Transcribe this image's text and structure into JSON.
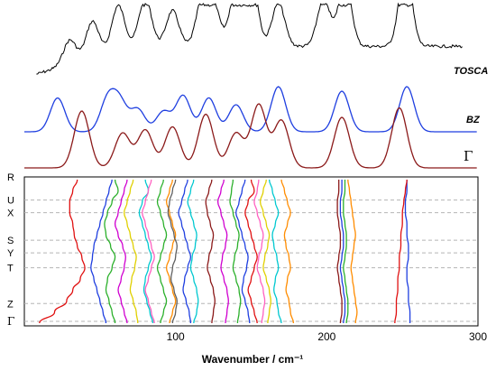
{
  "chart_data": [
    {
      "type": "line",
      "title": "",
      "series": [
        {
          "name": "TOSCA",
          "color": "#000000"
        },
        {
          "name": "BZ",
          "color": "#1f3fe0"
        },
        {
          "name": "Γ",
          "color": "#8b1a1a"
        }
      ],
      "peaks": {
        "TOSCA": [
          [
            18,
            0.0
          ],
          [
            30,
            0.3
          ],
          [
            45,
            0.45
          ],
          [
            62,
            0.55
          ],
          [
            80,
            0.6
          ],
          [
            98,
            0.45
          ],
          [
            118,
            0.6
          ],
          [
            125,
            0.5
          ],
          [
            140,
            0.72
          ],
          [
            150,
            0.9
          ],
          [
            168,
            0.55
          ],
          [
            198,
            0.6
          ],
          [
            212,
            0.85
          ],
          [
            252,
            1.0
          ]
        ],
        "BZ": [
          [
            22,
            0.75
          ],
          [
            55,
            0.7
          ],
          [
            63,
            0.65
          ],
          [
            75,
            0.5
          ],
          [
            92,
            0.45
          ],
          [
            105,
            0.8
          ],
          [
            122,
            0.75
          ],
          [
            140,
            0.6
          ],
          [
            168,
            1.0
          ],
          [
            210,
            0.9
          ],
          [
            253,
            1.0
          ]
        ],
        "Γ": [
          [
            38,
            0.9
          ],
          [
            65,
            0.55
          ],
          [
            80,
            0.6
          ],
          [
            98,
            0.65
          ],
          [
            120,
            0.85
          ],
          [
            140,
            0.55
          ],
          [
            155,
            1.0
          ],
          [
            170,
            0.75
          ],
          [
            210,
            0.8
          ],
          [
            248,
            0.95
          ]
        ]
      }
    },
    {
      "type": "line",
      "xlabel": "Wavenumber / cm⁻¹",
      "xlim": [
        0,
        300
      ],
      "xticks": [
        "100",
        "200",
        "300"
      ],
      "kpoints": [
        "R",
        "U",
        "X",
        "S",
        "Y",
        "T",
        "Z",
        "Γ"
      ],
      "kpoint_fractions": [
        0.0,
        0.155,
        0.24,
        0.425,
        0.51,
        0.61,
        0.85,
        0.97
      ],
      "bands": [
        {
          "color": "#e01010",
          "x": [
            35,
            32,
            30,
            30,
            32,
            33,
            35,
            38,
            40,
            37,
            32,
            28,
            20,
            10
          ]
        },
        {
          "color": "#1f3fe0",
          "x": [
            58,
            56,
            54,
            52,
            50,
            48,
            46,
            45,
            44,
            46,
            48,
            50,
            52,
            54
          ]
        },
        {
          "color": "#2bb02b",
          "x": [
            60,
            62,
            58,
            55,
            53,
            54,
            57,
            60,
            58,
            55,
            54,
            56,
            58,
            60
          ]
        },
        {
          "color": "#d000d0",
          "x": [
            68,
            66,
            64,
            62,
            60,
            62,
            65,
            67,
            66,
            64,
            62,
            64,
            66,
            68
          ]
        },
        {
          "color": "#e0d000",
          "x": [
            72,
            70,
            68,
            66,
            68,
            70,
            72,
            74,
            73,
            71,
            70,
            72,
            74,
            75
          ]
        },
        {
          "color": "#00c8d0",
          "x": [
            80,
            82,
            78,
            76,
            78,
            80,
            82,
            84,
            82,
            80,
            79,
            81,
            83,
            85
          ]
        },
        {
          "color": "#ff60c0",
          "x": [
            84,
            82,
            80,
            78,
            80,
            82,
            84,
            86,
            84,
            82,
            80,
            82,
            84,
            86
          ]
        },
        {
          "color": "#2bb02b",
          "x": [
            92,
            90,
            88,
            90,
            92,
            94,
            92,
            90,
            88,
            90,
            92,
            94,
            92,
            90
          ]
        },
        {
          "color": "#ff8c00",
          "x": [
            98,
            96,
            94,
            96,
            98,
            100,
            98,
            96,
            94,
            96,
            98,
            100,
            98,
            96
          ]
        },
        {
          "color": "#606060",
          "x": [
            100,
            98,
            96,
            95,
            97,
            99,
            101,
            100,
            98,
            97,
            99,
            101,
            100,
            98
          ]
        },
        {
          "color": "#1f3fe0",
          "x": [
            108,
            106,
            104,
            102,
            104,
            106,
            108,
            110,
            108,
            106,
            105,
            107,
            109,
            110
          ]
        },
        {
          "color": "#00c8d0",
          "x": [
            112,
            110,
            108,
            110,
            112,
            114,
            113,
            111,
            110,
            112,
            114,
            115,
            114,
            112
          ]
        },
        {
          "color": "#8b1a1a",
          "x": [
            124,
            122,
            120,
            121,
            123,
            125,
            124,
            122,
            121,
            123,
            125,
            126,
            125,
            124
          ]
        },
        {
          "color": "#d000d0",
          "x": [
            132,
            130,
            128,
            130,
            132,
            134,
            133,
            131,
            130,
            132,
            134,
            135,
            134,
            133
          ]
        },
        {
          "color": "#2bb02b",
          "x": [
            138,
            137,
            136,
            138,
            140,
            142,
            141,
            139,
            138,
            140,
            142,
            143,
            142,
            141
          ]
        },
        {
          "color": "#1f3fe0",
          "x": [
            146,
            144,
            142,
            140,
            142,
            144,
            146,
            148,
            147,
            145,
            144,
            146,
            148,
            149
          ]
        },
        {
          "color": "#e01010",
          "x": [
            150,
            152,
            148,
            146,
            148,
            150,
            152,
            154,
            152,
            150,
            148,
            150,
            152,
            154
          ]
        },
        {
          "color": "#ff60c0",
          "x": [
            155,
            154,
            152,
            154,
            156,
            158,
            157,
            155,
            154,
            156,
            158,
            159,
            158,
            157
          ]
        },
        {
          "color": "#e0d000",
          "x": [
            160,
            158,
            156,
            158,
            160,
            162,
            161,
            159,
            158,
            160,
            162,
            163,
            162,
            161
          ]
        },
        {
          "color": "#00c8d0",
          "x": [
            162,
            164,
            166,
            168,
            166,
            164,
            165,
            167,
            168,
            166,
            165,
            167,
            168,
            170
          ]
        },
        {
          "color": "#ff8c00",
          "x": [
            170,
            172,
            174,
            176,
            174,
            172,
            173,
            175,
            176,
            174,
            173,
            175,
            176,
            178
          ]
        },
        {
          "color": "#8b1a1a",
          "x": [
            208,
            208,
            207,
            207,
            208,
            209,
            209,
            208,
            207,
            208,
            209,
            210,
            210,
            209
          ]
        },
        {
          "color": "#1f3fe0",
          "x": [
            210,
            210,
            209,
            209,
            210,
            211,
            211,
            210,
            209,
            210,
            211,
            212,
            212,
            211
          ]
        },
        {
          "color": "#2bb02b",
          "x": [
            212,
            212,
            211,
            211,
            212,
            213,
            213,
            212,
            211,
            212,
            213,
            214,
            214,
            213
          ]
        },
        {
          "color": "#ff8c00",
          "x": [
            214,
            215,
            216,
            217,
            218,
            219,
            218,
            217,
            216,
            217,
            218,
            219,
            220,
            219
          ]
        },
        {
          "color": "#1f3fe0",
          "x": [
            253,
            253,
            252,
            252,
            253,
            253,
            254,
            254,
            253,
            253,
            254,
            254,
            255,
            255
          ]
        },
        {
          "color": "#e01010",
          "x": [
            253,
            252,
            251,
            250,
            250,
            249,
            249,
            248,
            248,
            247,
            247,
            246,
            246,
            245
          ]
        }
      ]
    }
  ]
}
